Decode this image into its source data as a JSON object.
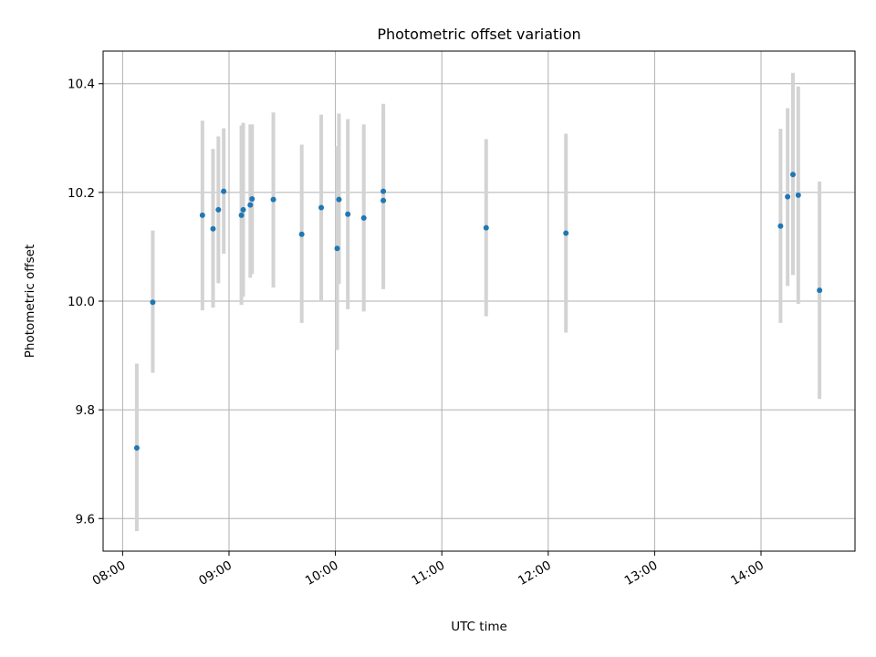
{
  "chart_data": {
    "type": "scatter",
    "title": "Photometric offset variation",
    "xlabel": "UTC time",
    "ylabel": "Photometric offset",
    "x_ticks": [
      "08:00",
      "09:00",
      "10:00",
      "11:00",
      "12:00",
      "13:00",
      "14:00"
    ],
    "y_ticks": [
      "9.6",
      "9.8",
      "10.0",
      "10.2",
      "10.4"
    ],
    "xlim": [
      "07:49",
      "14:53"
    ],
    "ylim": [
      9.54,
      10.46
    ],
    "grid": true,
    "colors": {
      "point": "#1f77b4",
      "errorbar": "#d3d3d3",
      "grid": "#b0b0b0"
    },
    "points": [
      {
        "x": "08:08",
        "y": 9.73,
        "low": 9.577,
        "high": 9.885
      },
      {
        "x": "08:17",
        "y": 9.998,
        "low": 9.868,
        "high": 10.13
      },
      {
        "x": "08:45",
        "y": 10.158,
        "low": 9.983,
        "high": 10.332
      },
      {
        "x": "08:51",
        "y": 10.133,
        "low": 9.988,
        "high": 10.28
      },
      {
        "x": "08:54",
        "y": 10.168,
        "low": 10.033,
        "high": 10.303
      },
      {
        "x": "08:57",
        "y": 10.202,
        "low": 10.087,
        "high": 10.318
      },
      {
        "x": "09:07",
        "y": 10.158,
        "low": 9.993,
        "high": 10.323
      },
      {
        "x": "09:08",
        "y": 10.168,
        "low": 10.008,
        "high": 10.328
      },
      {
        "x": "09:12",
        "y": 10.177,
        "low": 10.043,
        "high": 10.325
      },
      {
        "x": "09:13",
        "y": 10.188,
        "low": 10.05,
        "high": 10.325
      },
      {
        "x": "09:25",
        "y": 10.187,
        "low": 10.025,
        "high": 10.347
      },
      {
        "x": "09:41",
        "y": 10.123,
        "low": 9.96,
        "high": 10.288
      },
      {
        "x": "09:52",
        "y": 10.172,
        "low": 10.0,
        "high": 10.343
      },
      {
        "x": "10:01",
        "y": 10.097,
        "low": 9.91,
        "high": 10.285
      },
      {
        "x": "10:02",
        "y": 10.187,
        "low": 10.032,
        "high": 10.345
      },
      {
        "x": "10:07",
        "y": 10.16,
        "low": 9.985,
        "high": 10.335
      },
      {
        "x": "10:16",
        "y": 10.153,
        "low": 9.981,
        "high": 10.325
      },
      {
        "x": "10:27",
        "y": 10.202,
        "low": 10.043,
        "high": 10.363
      },
      {
        "x": "10:27",
        "y": 10.185,
        "low": 10.022,
        "high": 10.348
      },
      {
        "x": "11:25",
        "y": 10.135,
        "low": 9.972,
        "high": 10.298
      },
      {
        "x": "12:10",
        "y": 10.125,
        "low": 9.942,
        "high": 10.308
      },
      {
        "x": "14:11",
        "y": 10.138,
        "low": 9.96,
        "high": 10.317
      },
      {
        "x": "14:15",
        "y": 10.192,
        "low": 10.028,
        "high": 10.355
      },
      {
        "x": "14:18",
        "y": 10.233,
        "low": 10.048,
        "high": 10.42
      },
      {
        "x": "14:21",
        "y": 10.195,
        "low": 9.995,
        "high": 10.395
      },
      {
        "x": "14:33",
        "y": 10.02,
        "low": 9.82,
        "high": 10.22
      }
    ]
  }
}
